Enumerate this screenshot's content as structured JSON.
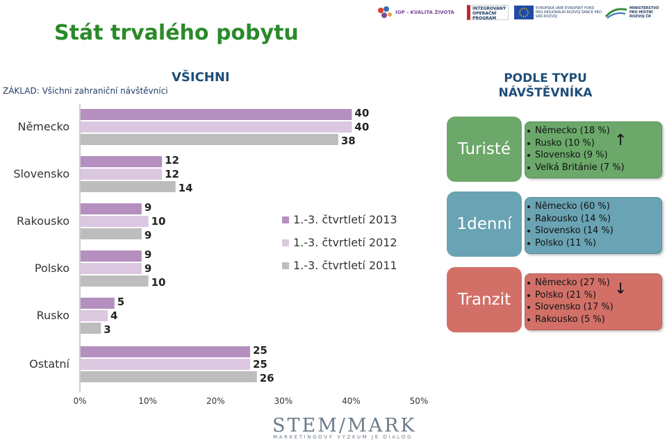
{
  "title": "Stát trvalého pobytu",
  "basis": "ZÁKLAD: Všichni zahraniční návštěvníci",
  "heading_all": "VŠICHNI",
  "heading_type": "PODLE TYPU NÁVŠTĚVNÍKA",
  "chart_data": {
    "type": "bar",
    "orientation": "horizontal",
    "categories": [
      "Německo",
      "Slovensko",
      "Rakousko",
      "Polsko",
      "Rusko",
      "Ostatní"
    ],
    "series": [
      {
        "name": "1.-3. čtvrtletí 2013",
        "color": "#b48fbf",
        "values": [
          40,
          12,
          9,
          9,
          5,
          25
        ]
      },
      {
        "name": "1.-3. čtvrtletí 2012",
        "color": "#dcc7e1",
        "values": [
          40,
          12,
          10,
          9,
          4,
          25
        ]
      },
      {
        "name": "1.-3. čtvrtletí 2011",
        "color": "#bdbdbd",
        "values": [
          38,
          14,
          9,
          10,
          3,
          26
        ]
      }
    ],
    "x_ticks": [
      "0%",
      "10%",
      "20%",
      "30%",
      "40%",
      "50%"
    ],
    "xlim": [
      0,
      50
    ],
    "legend_position": "middle-right",
    "grid": false
  },
  "segments": [
    {
      "label": "Turisté",
      "color": "#6ba86a",
      "items": [
        "Německo (18 %)",
        "Rusko (10 %)",
        "Slovensko (9 %)",
        "Velká Británie (7 %)"
      ],
      "arrow": "↑"
    },
    {
      "label": "1denní",
      "color": "#6aa3b3",
      "items": [
        "Německo (60 %)",
        "Rakousko (14 %)",
        "Slovensko (14 %)",
        "Polsko (11 %)"
      ],
      "arrow": ""
    },
    {
      "label": "Tranzit",
      "color": "#d27068",
      "items": [
        "Německo (27 %)",
        "Polsko (21 %)",
        "Slovensko (17 %)",
        "Rakousko (5 %)"
      ],
      "arrow": "↓"
    }
  ],
  "logos": {
    "iop": "IOP - KVALITA ŽIVOTA",
    "program": "INTEGROVANÝ OPERAČNÍ PROGRAM",
    "eu": "EVROPSKÁ UNIE EVROPSKÝ FOND PRO REGIONÁLNÍ ROZVOJ ŠANCE PRO VÁŠ ROZVOJ",
    "ministry": "MINISTERSTVO PRO MÍSTNÍ ROZVOJ ČR",
    "stem": "STEM/MARK",
    "stem_sub": "MARKETINGOVÝ VÝZKUM JE DIALOG"
  }
}
